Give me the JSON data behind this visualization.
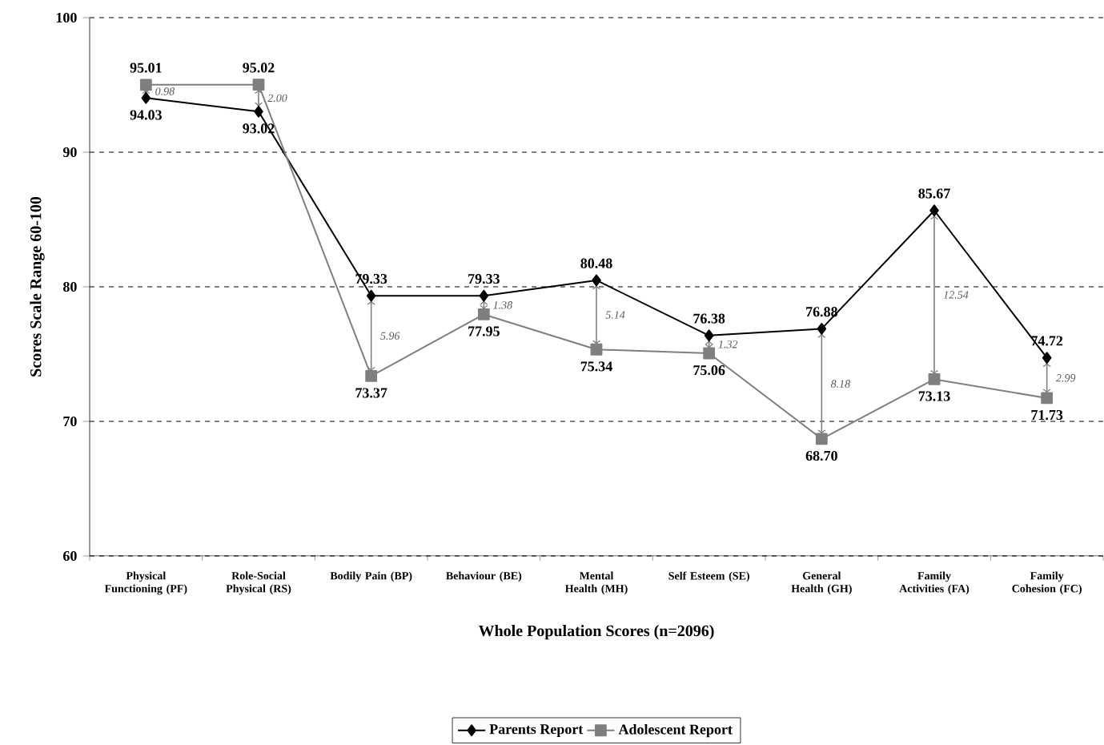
{
  "chart_data": {
    "type": "line",
    "xlabel": "Whole Population Scores (n=2096)",
    "ylabel": "Scores Scale Range 60-100",
    "categories": [
      "Physical Functioning (PF)",
      "Role-Social Physical (RS)",
      "Bodily Pain (BP)",
      "Behaviour (BE)",
      "Mental Health (MH)",
      "Self Esteem (SE)",
      "General Health (GH)",
      "Family Activities (FA)",
      "Family Cohesion (FC)"
    ],
    "series": [
      {
        "name": "Parents Report",
        "color": "#000000",
        "marker": "diamond",
        "values": [
          94.03,
          93.02,
          79.33,
          79.33,
          80.48,
          76.38,
          76.88,
          85.67,
          74.72
        ]
      },
      {
        "name": "Adolescent Report",
        "color": "#7f7f7f",
        "marker": "square",
        "values": [
          95.01,
          95.02,
          73.37,
          77.95,
          75.34,
          75.06,
          68.7,
          73.13,
          71.73
        ],
        "value_labels": [
          "95.01",
          "95.02",
          "73.37",
          "77.95",
          "75.34",
          "75.06",
          "68.70",
          "73.13",
          "71.73"
        ]
      }
    ],
    "ylim": [
      60,
      100
    ],
    "yticks": [
      60,
      70,
      80,
      90,
      100
    ],
    "grid": "y",
    "legend": "bottom",
    "data_labels": true,
    "annotations": [
      "0.98",
      "2.00",
      "5.96",
      "1.38",
      "5.14",
      "1.32",
      "8.18",
      "12.54",
      "2.99"
    ]
  }
}
